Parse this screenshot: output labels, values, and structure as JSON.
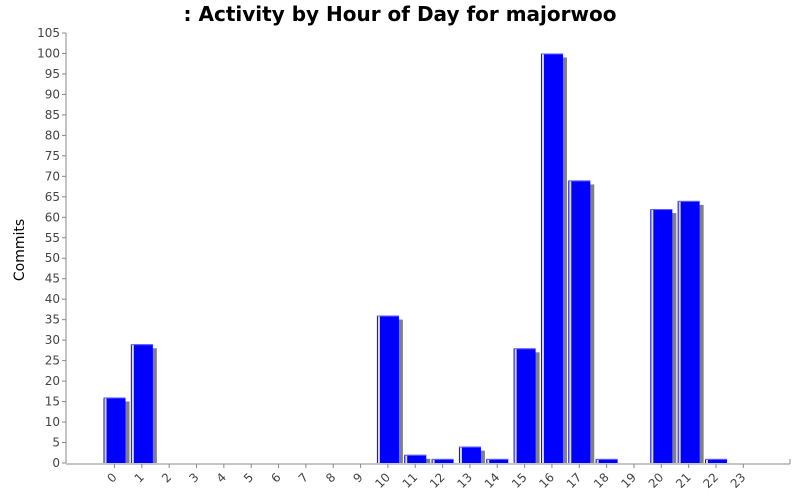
{
  "chart_data": {
    "type": "bar",
    "title": ": Activity by Hour of Day for majorwoo",
    "xlabel": "",
    "ylabel": "Commits",
    "categories": [
      "0",
      "1",
      "2",
      "3",
      "4",
      "5",
      "6",
      "7",
      "8",
      "9",
      "10",
      "11",
      "12",
      "13",
      "14",
      "15",
      "16",
      "17",
      "18",
      "19",
      "20",
      "21",
      "22",
      "23"
    ],
    "values": [
      16,
      29,
      0,
      0,
      0,
      0,
      0,
      0,
      0,
      0,
      36,
      2,
      1,
      4,
      1,
      28,
      100,
      69,
      1,
      0,
      62,
      64,
      1,
      0
    ],
    "ylim": [
      0,
      105
    ],
    "yticks": [
      0,
      5,
      10,
      15,
      20,
      25,
      30,
      35,
      40,
      45,
      50,
      55,
      60,
      65,
      70,
      75,
      80,
      85,
      90,
      95,
      100,
      105
    ],
    "bar_color": "#0000ff",
    "shadow_color": "#808080",
    "grid": false,
    "legend": "none"
  }
}
